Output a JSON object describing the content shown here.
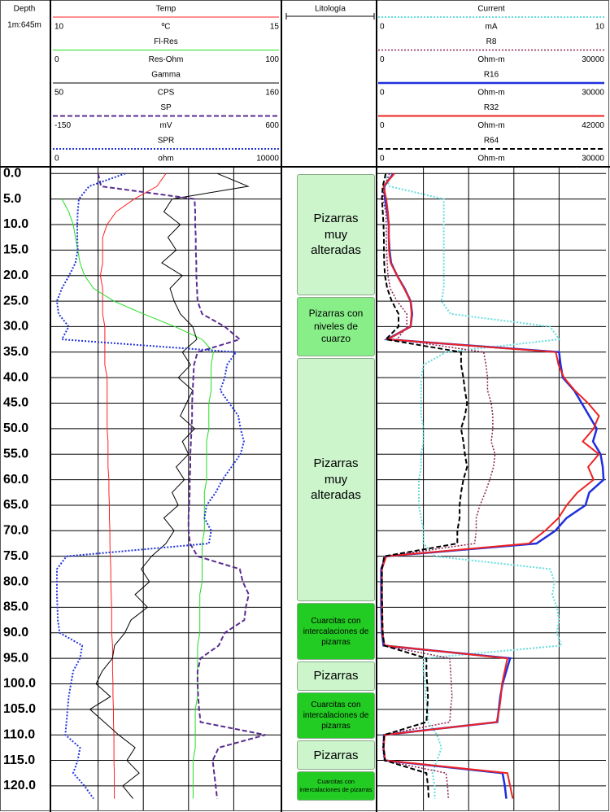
{
  "chart_data": {
    "type": "well-log",
    "depth_title": "Depth",
    "scale": "1m:645m",
    "lithology_title": "Litología",
    "ylim": [
      -1,
      124
    ],
    "yticks": [
      {
        "value": 0,
        "label": "0.0"
      },
      {
        "value": 5,
        "label": "5.0"
      },
      {
        "value": 10,
        "label": "10.0"
      },
      {
        "value": 15,
        "label": "15.0"
      },
      {
        "value": 20,
        "label": "20.0"
      },
      {
        "value": 25,
        "label": "25.0"
      },
      {
        "value": 30,
        "label": "30.0"
      },
      {
        "value": 35,
        "label": "35.0"
      },
      {
        "value": 40,
        "label": "40.0"
      },
      {
        "value": 45,
        "label": "45.0"
      },
      {
        "value": 50,
        "label": "50.0"
      },
      {
        "value": 55,
        "label": "55.0"
      },
      {
        "value": 60,
        "label": "60.0"
      },
      {
        "value": 65,
        "label": "65.0"
      },
      {
        "value": 70,
        "label": "70.0"
      },
      {
        "value": 75,
        "label": "75.0"
      },
      {
        "value": 80,
        "label": "80.0"
      },
      {
        "value": 85,
        "label": "85.0"
      },
      {
        "value": 90,
        "label": "90.0"
      },
      {
        "value": 95,
        "label": "95.0"
      },
      {
        "value": 100,
        "label": "100.0"
      },
      {
        "value": 105,
        "label": "105.0"
      },
      {
        "value": 110,
        "label": "110.0"
      },
      {
        "value": 115,
        "label": "115.0"
      },
      {
        "value": 120,
        "label": "120.0"
      }
    ],
    "grid": true,
    "depths": [
      0,
      2.5,
      5,
      7.5,
      10,
      12.5,
      15,
      17.5,
      20,
      22.5,
      25,
      27.5,
      30,
      32.5,
      35,
      37.5,
      40,
      42.5,
      45,
      47.5,
      50,
      52.5,
      55,
      57.5,
      60,
      62.5,
      65,
      67.5,
      70,
      72.5,
      75,
      77.5,
      80,
      82.5,
      85,
      87.5,
      90,
      92.5,
      95,
      97.5,
      100,
      102.5,
      105,
      107.5,
      110,
      112.5,
      115,
      117.5,
      120,
      122.5
    ],
    "tracks": [
      {
        "vertical_divisions": 5,
        "curves": [
          {
            "name": "Temp",
            "unit": "ºC",
            "xlim": [
              10,
              15
            ],
            "color": "#ff2020",
            "style": "solid",
            "width": 1,
            "values": [
              12.5,
              12.3,
              11.8,
              11.4,
              11.2,
              11.1,
              11.1,
              11.1,
              11.05,
              11.1,
              11.1,
              11.1,
              11.15,
              11.15,
              11.15,
              11.15,
              11.2,
              11.2,
              11.2,
              11.2,
              11.2,
              11.22,
              11.22,
              11.22,
              11.24,
              11.24,
              11.25,
              11.25,
              11.26,
              11.26,
              11.27,
              11.28,
              11.28,
              11.29,
              11.3,
              11.3,
              11.3,
              11.32,
              11.32,
              11.32,
              11.33,
              11.33,
              11.34,
              11.34,
              11.35,
              11.35,
              11.35,
              11.36,
              11.36,
              11.36
            ]
          },
          {
            "name": "Fl-Res",
            "unit": "Res-Ohm",
            "xlim": [
              0,
              100
            ],
            "color": "#22dd22",
            "style": "solid",
            "width": 1,
            "values": [
              null,
              null,
              4,
              7,
              9,
              10,
              11,
              12,
              14,
              18,
              27,
              40,
              54,
              66,
              71,
              70,
              70,
              70,
              69,
              69,
              69,
              68,
              68,
              68,
              68,
              67,
              67,
              67,
              67,
              66,
              66,
              66,
              66,
              65,
              65,
              65,
              65,
              64,
              64,
              64,
              64,
              64,
              63,
              63,
              63,
              63,
              62,
              62,
              62,
              62
            ]
          },
          {
            "name": "Gamma",
            "unit": "CPS",
            "xlim": [
              50,
              160
            ],
            "color": "#000000",
            "style": "solid",
            "width": 1,
            "values": [
              130,
              145,
              108,
              104,
              112,
              106,
              110,
              103,
              113,
              107,
              109,
              112,
              118,
              120,
              113,
              117,
              111,
              118,
              115,
              112,
              119,
              113,
              116,
              110,
              114,
              108,
              111,
              104,
              109,
              105,
              98,
              93,
              97,
              90,
              96,
              88,
              85,
              80,
              79,
              74,
              71,
              78,
              68,
              75,
              82,
              90,
              86,
              92,
              84,
              89
            ]
          },
          {
            "name": "SP",
            "unit": "mV",
            "xlim": [
              -150,
              600
            ],
            "color": "#5a2d91",
            "style": "dashed",
            "width": 2,
            "values": [
              0,
              10,
              320,
              322,
              322,
              324,
              324,
              326,
              326,
              328,
              330,
              345,
              420,
              470,
              330,
              318,
              316,
              314,
              312,
              312,
              310,
              308,
              306,
              306,
              304,
              304,
              302,
              300,
              300,
              305,
              330,
              470,
              480,
              500,
              490,
              485,
              420,
              400,
              340,
              330,
              330,
              332,
              335,
              340,
              555,
              400,
              380,
              385,
              390,
              395
            ]
          },
          {
            "name": "SPR",
            "unit": "ohm",
            "xlim": [
              0,
              10000
            ],
            "color": "#2233dd",
            "style": "dotted",
            "width": 2,
            "values": [
              3200,
              1600,
              1150,
              1100,
              1080,
              1080,
              1100,
              1000,
              720,
              400,
              180,
              250,
              700,
              400,
              8100,
              7700,
              7600,
              7400,
              7800,
              8200,
              8300,
              8450,
              8300,
              7900,
              7500,
              7200,
              6800,
              6700,
              7000,
              6900,
              600,
              180,
              180,
              180,
              200,
              220,
              300,
              1300,
              1200,
              900,
              800,
              700,
              650,
              600,
              550,
              1200,
              1100,
              900,
              1400,
              1800
            ]
          }
        ]
      },
      {
        "vertical_divisions": 5,
        "curves": [
          {
            "name": "Current",
            "unit": "mA",
            "xlim": [
              0,
              10
            ],
            "color": "#66dddd",
            "style": "dotted",
            "width": 2,
            "values": [
              0.3,
              0.5,
              2.9,
              2.9,
              2.9,
              2.9,
              2.9,
              2.9,
              2.9,
              2.9,
              2.8,
              3.2,
              7.6,
              8.0,
              3.0,
              2.0,
              1.9,
              1.9,
              1.9,
              1.9,
              2.0,
              2.0,
              1.9,
              1.9,
              1.8,
              1.8,
              1.8,
              1.9,
              2.0,
              2.0,
              2.5,
              7.6,
              7.8,
              7.7,
              7.9,
              8.0,
              7.9,
              8.1,
              2.0,
              2.0,
              2.1,
              2.1,
              2.2,
              2.2,
              2.6,
              2.8,
              2.6,
              2.4,
              2.5,
              2.5
            ]
          },
          {
            "name": "R8",
            "unit": "Ohm-m",
            "xlim": [
              0,
              30000
            ],
            "color": "#8b2252",
            "style": "dotted",
            "width": 1.5,
            "values": [
              1500,
              800,
              600,
              1000,
              1080,
              1080,
              1100,
              1200,
              1300,
              1600,
              2500,
              3800,
              3800,
              2500,
              14000,
              14300,
              14500,
              14500,
              15000,
              15200,
              15200,
              15000,
              15500,
              15300,
              14800,
              14200,
              13500,
              13000,
              13000,
              12800,
              1000,
              500,
              500,
              500,
              540,
              560,
              600,
              700,
              9500,
              9600,
              9700,
              9800,
              9600,
              9500,
              700,
              600,
              800,
              9000,
              9200,
              9300
            ]
          },
          {
            "name": "R16",
            "unit": "Ohm-m",
            "xlim": [
              0,
              30000
            ],
            "color": "#1f2fdd",
            "style": "solid",
            "width": 2.5,
            "values": [
              2000,
              800,
              900,
              1200,
              1400,
              1400,
              1500,
              1700,
              2500,
              3500,
              4300,
              4500,
              4300,
              1200,
              24000,
              24200,
              24500,
              26000,
              27000,
              28000,
              29000,
              28500,
              29500,
              29800,
              29900,
              28000,
              27500,
              25000,
              23500,
              21000,
              1000,
              400,
              400,
              400,
              400,
              450,
              500,
              700,
              17500,
              17000,
              16500,
              16200,
              16000,
              15800,
              800,
              700,
              900,
              16500,
              16800,
              17000
            ]
          },
          {
            "name": "R32",
            "unit": "Ohm-m",
            "xlim": [
              0,
              42000
            ],
            "color": "#ee2222",
            "style": "solid",
            "width": 2,
            "values": [
              3000,
              1000,
              1500,
              1800,
              1960,
              1960,
              2000,
              2300,
              3500,
              4800,
              6000,
              6200,
              6000,
              1800,
              33000,
              33500,
              34500,
              36500,
              39000,
              41000,
              40000,
              38000,
              41000,
              39000,
              40000,
              37000,
              35000,
              33500,
              31000,
              28000,
              1500,
              700,
              700,
              700,
              700,
              750,
              800,
              1200,
              24000,
              23500,
              23000,
              22800,
              22500,
              22000,
              1200,
              1000,
              1300,
              24000,
              24500,
              25000
            ]
          },
          {
            "name": "R64",
            "unit": "Ohm-m",
            "xlim": [
              0,
              30000
            ],
            "color": "#000000",
            "style": "dashed",
            "width": 2,
            "values": [
              1000,
              600,
              500,
              600,
              700,
              755,
              760,
              800,
              900,
              1200,
              1800,
              2700,
              2700,
              1000,
              11000,
              11000,
              11300,
              11500,
              11800,
              11500,
              11000,
              11300,
              11500,
              11800,
              11300,
              11000,
              10800,
              10800,
              10500,
              10500,
              800,
              500,
              500,
              500,
              540,
              560,
              600,
              800,
              6400,
              6400,
              6500,
              6600,
              6500,
              6400,
              800,
              700,
              900,
              6400,
              6600,
              6700
            ]
          }
        ]
      }
    ],
    "lithology": [
      {
        "top": 0,
        "base": 24,
        "label": "Pizarras muy alteradas",
        "color": "#ccf5cc",
        "size": "big"
      },
      {
        "top": 24,
        "base": 36,
        "label": "Pizarras con niveles de cuarzo",
        "color": "#88ee88",
        "size": "mid"
      },
      {
        "top": 36,
        "base": 84,
        "label": "Pizarras muy alteradas",
        "color": "#ccf5cc",
        "size": "big"
      },
      {
        "top": 84,
        "base": 95.5,
        "label": "Cuarcitas con intercalaciones de pizarras",
        "color": "#22cc22",
        "size": "small"
      },
      {
        "top": 95.5,
        "base": 101.5,
        "label": "Pizarras",
        "color": "#ccf5cc",
        "size": "big"
      },
      {
        "top": 101.5,
        "base": 111,
        "label": "Cuarcitas con intercalaciones de pizarras",
        "color": "#22cc22",
        "size": "small"
      },
      {
        "top": 111,
        "base": 117,
        "label": "Pizarras",
        "color": "#ccf5cc",
        "size": "big"
      },
      {
        "top": 117,
        "base": 123,
        "label": "Cuarcitas con intercalaciones de pizarras",
        "color": "#22cc22",
        "size": "tiny"
      }
    ]
  }
}
